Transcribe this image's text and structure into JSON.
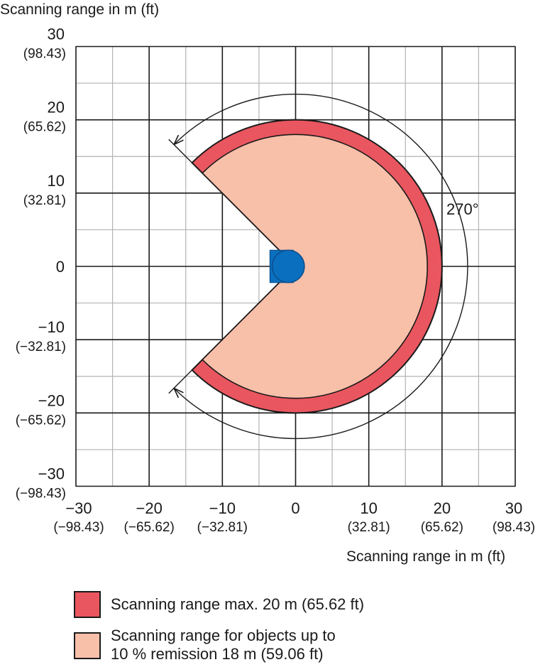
{
  "y_axis_title": "Scanning range in m (ft)",
  "x_axis_title": "Scanning range in m (ft)",
  "y_ticks": [
    {
      "m": "30",
      "ft": "(98.43)",
      "v": 30
    },
    {
      "m": "20",
      "ft": "(65.62)",
      "v": 20
    },
    {
      "m": "10",
      "ft": "(32.81)",
      "v": 10
    },
    {
      "m": "0",
      "ft": "",
      "v": 0
    },
    {
      "m": "−10",
      "ft": "(−32.81)",
      "v": -10
    },
    {
      "m": "−20",
      "ft": "(−65.62)",
      "v": -20
    },
    {
      "m": "−30",
      "ft": "(−98.43)",
      "v": -30
    }
  ],
  "x_ticks": [
    {
      "m": "−30",
      "ft": "(−98.43)",
      "v": -30
    },
    {
      "m": "−20",
      "ft": "(−65.62)",
      "v": -20
    },
    {
      "m": "−10",
      "ft": "(−32.81)",
      "v": -10
    },
    {
      "m": "0",
      "ft": "",
      "v": 0
    },
    {
      "m": "10",
      "ft": "(32.81)",
      "v": 10
    },
    {
      "m": "20",
      "ft": "(65.62)",
      "v": 20
    },
    {
      "m": "30",
      "ft": "(98.43)",
      "v": 30
    }
  ],
  "angle_label": "270°",
  "field": {
    "max_range_m": 20,
    "remission_range_m": 18,
    "aperture_deg": 270,
    "axis_min": -30,
    "axis_max": 30,
    "minor_step_m": 5,
    "major_step_m": 10
  },
  "colors": {
    "max_range": "#e9565f",
    "remission_range": "#f8bfa9",
    "sensor": "#0a6fbf",
    "sensor_dark": "#0b4f8c",
    "grid_major": "#1a1a1a",
    "grid_minor": "#b3b3b3"
  },
  "legend": {
    "max_range_label": "Scanning range max. 20 m (65.62 ft)",
    "remission_line1": "Scanning range for objects up to",
    "remission_line2": "10 % remission 18 m (59.06 ft)"
  }
}
